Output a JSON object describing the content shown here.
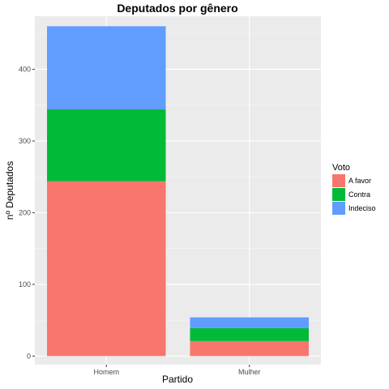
{
  "chart_data": {
    "type": "bar",
    "stacked": true,
    "title": "Deputados por gênero",
    "xlabel": "Partido",
    "ylabel": "nº Deputados",
    "categories": [
      "Homem",
      "Mulher"
    ],
    "y_ticks": [
      0,
      100,
      200,
      300,
      400
    ],
    "ylim": [
      -12,
      474
    ],
    "grid": true,
    "legend_title": "Voto",
    "legend_position": "right",
    "series": [
      {
        "name": "A favor",
        "color": "#F8766D",
        "values": [
          244,
          21
        ]
      },
      {
        "name": "Contra",
        "color": "#00BA38",
        "values": [
          100,
          18
        ]
      },
      {
        "name": "Indeciso",
        "color": "#619CFF",
        "values": [
          116,
          15
        ]
      }
    ]
  }
}
